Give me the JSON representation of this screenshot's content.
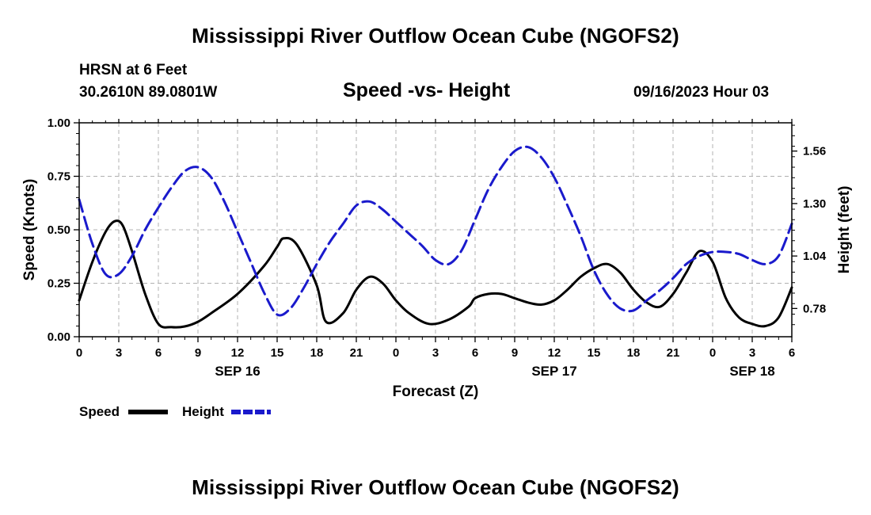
{
  "page": {
    "title_top": "Mississippi River Outflow Ocean Cube (NGOFS2)",
    "title_bottom": "Mississippi River Outflow Ocean Cube (NGOFS2)",
    "station": "HRSN at 6 Feet",
    "coords": "30.2610N  89.0801W",
    "subtitle": "Speed -vs- Height",
    "datetime": "09/16/2023 Hour 03"
  },
  "colors": {
    "speed": "#000000",
    "height": "#1a1acc",
    "grid": "#b0b0b0"
  },
  "chart_data": {
    "type": "line",
    "title": "Speed -vs- Height",
    "xlabel": "Forecast (Z)",
    "ylabel_left": "Speed (Knots)",
    "ylabel_right": "Height (feet)",
    "x_range_hours": [
      0,
      54
    ],
    "x_tick_step_hours": 3,
    "x_tick_labels": [
      "0",
      "3",
      "6",
      "9",
      "12",
      "15",
      "18",
      "21",
      "0",
      "3",
      "6",
      "9",
      "12",
      "15",
      "18",
      "21",
      "0",
      "3",
      "6"
    ],
    "date_labels": [
      {
        "hour": 12,
        "label": "SEP 16"
      },
      {
        "hour": 36,
        "label": "SEP 17"
      },
      {
        "hour": 51,
        "label": "SEP 18"
      }
    ],
    "y_left": {
      "range": [
        0,
        1.0
      ],
      "ticks": [
        0,
        0.25,
        0.5,
        0.75,
        1.0
      ],
      "tick_labels": [
        "0.00",
        "0.25",
        "0.50",
        "0.75",
        "1.00"
      ]
    },
    "y_right": {
      "range": [
        0.64,
        1.7
      ],
      "ticks": [
        0.78,
        1.04,
        1.3,
        1.56
      ],
      "tick_labels": [
        "0.78",
        "1.04",
        "1.30",
        "1.56"
      ]
    },
    "grid": true,
    "legend": {
      "position": "bottom-left",
      "entries": [
        "Speed",
        "Height"
      ]
    },
    "series": [
      {
        "name": "Speed",
        "axis": "left",
        "style": "solid",
        "x": [
          0,
          1,
          2,
          2.7,
          3.3,
          4,
          5,
          6,
          7,
          8,
          9,
          10,
          12,
          14,
          15,
          15.5,
          16.5,
          18,
          18.7,
          20,
          21,
          22,
          23,
          24,
          25,
          26.5,
          28,
          29.5,
          30,
          31,
          32,
          33,
          34,
          35,
          36,
          37,
          38,
          39,
          40,
          41,
          42,
          43,
          44,
          45,
          46,
          47,
          48,
          49,
          50,
          51,
          52,
          53,
          54
        ],
        "y": [
          0.17,
          0.35,
          0.49,
          0.54,
          0.52,
          0.4,
          0.2,
          0.06,
          0.045,
          0.048,
          0.07,
          0.11,
          0.2,
          0.33,
          0.42,
          0.46,
          0.43,
          0.24,
          0.07,
          0.11,
          0.22,
          0.28,
          0.25,
          0.17,
          0.11,
          0.06,
          0.08,
          0.14,
          0.18,
          0.2,
          0.2,
          0.18,
          0.16,
          0.15,
          0.17,
          0.22,
          0.28,
          0.32,
          0.34,
          0.3,
          0.22,
          0.16,
          0.14,
          0.2,
          0.3,
          0.4,
          0.35,
          0.18,
          0.09,
          0.06,
          0.05,
          0.09,
          0.23
        ]
      },
      {
        "name": "Height",
        "axis": "right",
        "style": "dashed",
        "x": [
          0,
          1,
          2,
          3,
          4,
          5,
          6,
          7,
          8,
          9,
          10,
          11,
          12,
          13,
          14,
          15,
          16,
          17,
          18,
          19,
          20,
          21,
          22,
          23,
          24,
          25,
          26,
          27,
          28,
          29,
          30,
          31,
          32,
          33,
          34,
          35,
          36,
          37,
          38,
          39,
          40,
          41,
          42,
          43,
          44,
          45,
          46,
          47,
          48,
          49,
          50,
          51,
          52,
          53,
          54
        ],
        "y": [
          1.32,
          1.1,
          0.95,
          0.95,
          1.04,
          1.17,
          1.28,
          1.38,
          1.46,
          1.48,
          1.43,
          1.31,
          1.16,
          1.01,
          0.86,
          0.75,
          0.78,
          0.88,
          1.0,
          1.11,
          1.2,
          1.29,
          1.31,
          1.27,
          1.21,
          1.15,
          1.09,
          1.02,
          1.0,
          1.07,
          1.22,
          1.37,
          1.48,
          1.56,
          1.58,
          1.53,
          1.43,
          1.29,
          1.14,
          0.97,
          0.85,
          0.78,
          0.77,
          0.82,
          0.87,
          0.93,
          1.0,
          1.04,
          1.06,
          1.06,
          1.05,
          1.02,
          1.0,
          1.04,
          1.2
        ]
      }
    ]
  }
}
